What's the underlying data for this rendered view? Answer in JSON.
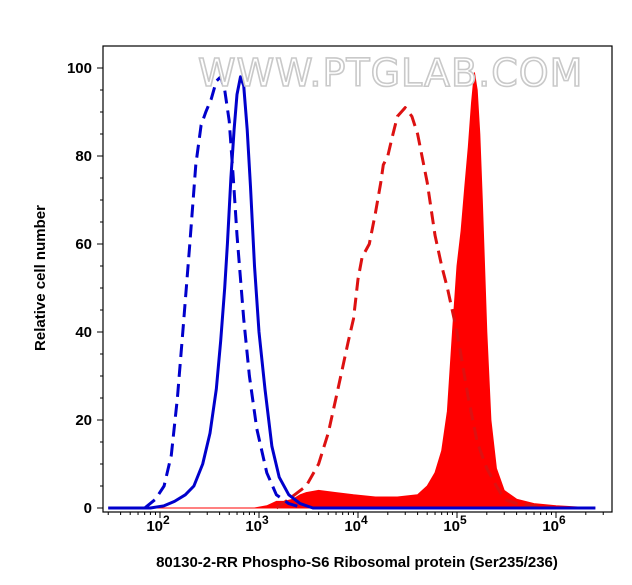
{
  "watermark": "WWW.PTGLAB.COM",
  "chart_data": {
    "type": "line",
    "xscale": "log",
    "xlim": [
      30,
      2500000
    ],
    "ylim": [
      0,
      100
    ],
    "xlabel": "80130-2-RR Phospho-S6 Ribosomal protein (Ser235/236)",
    "ylabel": "Relative cell number",
    "x_ticks": [
      {
        "value": 100,
        "base": "10",
        "exp": "2"
      },
      {
        "value": 1000,
        "base": "10",
        "exp": "3"
      },
      {
        "value": 10000,
        "base": "10",
        "exp": "4"
      },
      {
        "value": 100000,
        "base": "10",
        "exp": "5"
      },
      {
        "value": 1000000,
        "base": "10",
        "exp": "6"
      }
    ],
    "y_ticks": [
      0,
      20,
      40,
      60,
      80,
      100
    ],
    "series": [
      {
        "style": "filled",
        "color": "#ff0000",
        "points": [
          [
            30,
            0
          ],
          [
            900,
            0
          ],
          [
            1200,
            0.5
          ],
          [
            1500,
            1.5
          ],
          [
            1800,
            1.5
          ],
          [
            2200,
            2
          ],
          [
            2600,
            3
          ],
          [
            3000,
            3.5
          ],
          [
            4000,
            4
          ],
          [
            6000,
            3.5
          ],
          [
            9000,
            3
          ],
          [
            15000,
            2.5
          ],
          [
            25000,
            2.5
          ],
          [
            40000,
            3
          ],
          [
            50000,
            5
          ],
          [
            60000,
            8
          ],
          [
            70000,
            13
          ],
          [
            80000,
            22
          ],
          [
            90000,
            40
          ],
          [
            100000,
            55
          ],
          [
            110000,
            63
          ],
          [
            120000,
            73
          ],
          [
            130000,
            82
          ],
          [
            140000,
            92
          ],
          [
            150000,
            99
          ],
          [
            160000,
            95
          ],
          [
            170000,
            85
          ],
          [
            180000,
            70
          ],
          [
            200000,
            40
          ],
          [
            220000,
            20
          ],
          [
            250000,
            9
          ],
          [
            300000,
            4
          ],
          [
            400000,
            2
          ],
          [
            600000,
            1
          ],
          [
            1000000,
            0.5
          ],
          [
            2500000,
            0
          ]
        ]
      },
      {
        "style": "dashed",
        "color": "#dd1111",
        "points": [
          [
            1500,
            0
          ],
          [
            2000,
            2
          ],
          [
            3000,
            5
          ],
          [
            4000,
            10
          ],
          [
            5000,
            17
          ],
          [
            6000,
            25
          ],
          [
            7000,
            32
          ],
          [
            8000,
            38
          ],
          [
            9000,
            43
          ],
          [
            10000,
            52
          ],
          [
            11000,
            57
          ],
          [
            13000,
            60
          ],
          [
            15000,
            67
          ],
          [
            17000,
            74
          ],
          [
            18000,
            78
          ],
          [
            20000,
            80
          ],
          [
            22000,
            84
          ],
          [
            25000,
            89
          ],
          [
            30000,
            91
          ],
          [
            35000,
            89
          ],
          [
            40000,
            85
          ],
          [
            50000,
            74
          ],
          [
            60000,
            62
          ],
          [
            70000,
            55
          ],
          [
            80000,
            50
          ],
          [
            100000,
            40
          ],
          [
            130000,
            25
          ],
          [
            160000,
            15
          ],
          [
            200000,
            9
          ],
          [
            250000,
            5
          ],
          [
            300000,
            2
          ],
          [
            400000,
            1
          ],
          [
            600000,
            0.5
          ],
          [
            1000000,
            0
          ]
        ]
      },
      {
        "style": "solid",
        "color": "#0000cc",
        "points": [
          [
            30,
            0
          ],
          [
            80,
            0
          ],
          [
            110,
            0.5
          ],
          [
            140,
            1.5
          ],
          [
            180,
            3
          ],
          [
            220,
            5
          ],
          [
            270,
            10
          ],
          [
            320,
            17
          ],
          [
            370,
            27
          ],
          [
            410,
            38
          ],
          [
            450,
            50
          ],
          [
            480,
            60
          ],
          [
            520,
            75
          ],
          [
            560,
            86
          ],
          [
            600,
            94
          ],
          [
            650,
            98
          ],
          [
            700,
            96
          ],
          [
            760,
            86
          ],
          [
            820,
            73
          ],
          [
            900,
            55
          ],
          [
            1000,
            40
          ],
          [
            1150,
            27
          ],
          [
            1350,
            14
          ],
          [
            1600,
            7
          ],
          [
            2000,
            3
          ],
          [
            2600,
            1
          ],
          [
            3500,
            0
          ],
          [
            2500000,
            0
          ]
        ]
      },
      {
        "style": "dashed",
        "color": "#0000cc",
        "points": [
          [
            70,
            0
          ],
          [
            90,
            2
          ],
          [
            110,
            5
          ],
          [
            130,
            12
          ],
          [
            150,
            25
          ],
          [
            170,
            40
          ],
          [
            200,
            60
          ],
          [
            230,
            78
          ],
          [
            260,
            87
          ],
          [
            290,
            90
          ],
          [
            330,
            93
          ],
          [
            370,
            97
          ],
          [
            410,
            98
          ],
          [
            450,
            95
          ],
          [
            500,
            88
          ],
          [
            550,
            75
          ],
          [
            600,
            62
          ],
          [
            700,
            43
          ],
          [
            800,
            30
          ],
          [
            950,
            18
          ],
          [
            1200,
            8
          ],
          [
            1500,
            3
          ],
          [
            2000,
            1
          ],
          [
            2800,
            0
          ]
        ]
      }
    ]
  }
}
